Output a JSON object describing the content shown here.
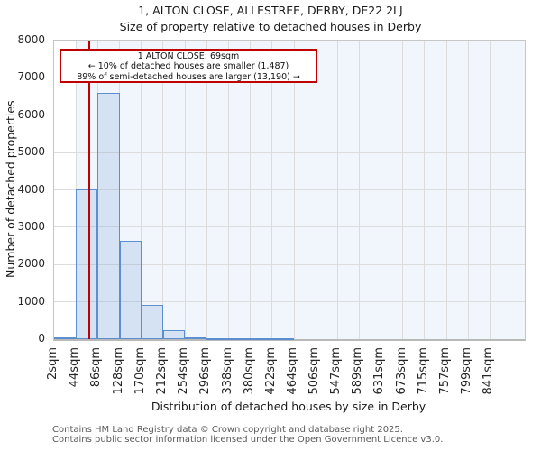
{
  "chart_data": {
    "type": "bar",
    "title": "1, ALTON CLOSE, ALLESTREE, DERBY, DE22 2LJ",
    "subtitle": "Size of property relative to detached houses in Derby",
    "xlabel": "Distribution of detached houses by size in Derby",
    "ylabel": "Number of detached properties",
    "xlim": [
      2,
      908
    ],
    "ylim": [
      0,
      8000
    ],
    "grid": true,
    "bin_edges_sqm": [
      2,
      44,
      86,
      128,
      170,
      212,
      254,
      296,
      338,
      380,
      422,
      464,
      506,
      547,
      589,
      631,
      673,
      715,
      757,
      799,
      841
    ],
    "xtick_labels": [
      "2sqm",
      "44sqm",
      "86sqm",
      "128sqm",
      "170sqm",
      "212sqm",
      "254sqm",
      "296sqm",
      "338sqm",
      "380sqm",
      "422sqm",
      "464sqm",
      "506sqm",
      "547sqm",
      "589sqm",
      "631sqm",
      "673sqm",
      "715sqm",
      "757sqm",
      "799sqm",
      "841sqm"
    ],
    "ytick_values": [
      0,
      1000,
      2000,
      3000,
      4000,
      5000,
      6000,
      7000,
      8000
    ],
    "values": [
      40,
      4020,
      6610,
      2640,
      910,
      250,
      45,
      18,
      12,
      10,
      8,
      0,
      0,
      0,
      0,
      0,
      0,
      0,
      0,
      0
    ],
    "marker": {
      "sqm": 69
    },
    "highlight_span_from_sqm": 44,
    "annotation": {
      "line1": "1 ALTON CLOSE: 69sqm",
      "line2": "← 10% of detached houses are smaller (1,487)",
      "line3": "89% of semi-detached houses are larger (13,190) →"
    },
    "colors": {
      "bar_fill": "rgba(91,143,210,0.18)",
      "bar_edge": "#5b8fd0",
      "highlight_span": "#f1f5fc",
      "grid": "#dcdcdc",
      "spine": "#c6c6c6",
      "marker": "#c00000",
      "annotation_border": "#c00000"
    }
  },
  "footer": {
    "line1": "Contains HM Land Registry data © Crown copyright and database right 2025.",
    "line2": "Contains public sector information licensed under the Open Government Licence v3.0."
  }
}
